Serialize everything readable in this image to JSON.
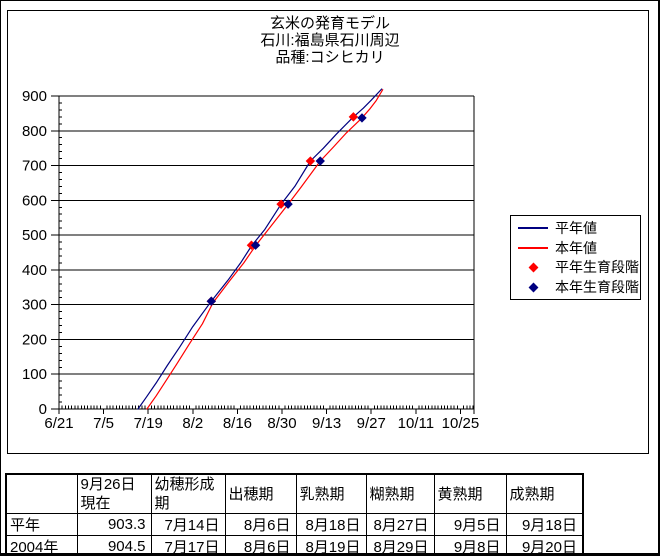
{
  "colors": {
    "heinen_line": "#000080",
    "honnen_line": "#ff0000",
    "heinen_marker": "#ff0000",
    "honnen_marker": "#000080",
    "grid": "#000000"
  },
  "chart": {
    "title_lines": [
      "玄米の発育モデル",
      "石川:福島県石川周辺",
      "品種:コシヒカリ"
    ],
    "legend_items": [
      {
        "label": "平年値",
        "type": "line",
        "color": "#000080"
      },
      {
        "label": "本年値",
        "type": "line",
        "color": "#ff0000"
      },
      {
        "label": "平年生育段階",
        "type": "diamond",
        "color": "#ff0000"
      },
      {
        "label": "本年生育段階",
        "type": "diamond",
        "color": "#000080"
      }
    ]
  },
  "chart_data": {
    "type": "line",
    "title": "玄米の発育モデル 石川:福島県石川周辺 品種:コシヒカリ",
    "xlabel": "",
    "ylabel": "",
    "x_axis": {
      "tick_labels": [
        "6/21",
        "7/5",
        "7/19",
        "8/2",
        "8/16",
        "8/30",
        "9/13",
        "9/27",
        "10/11",
        "10/25"
      ],
      "tick_days": [
        0,
        14,
        28,
        42,
        56,
        70,
        84,
        98,
        112,
        126
      ],
      "minor_unit_days": 1,
      "range_days": [
        0,
        130.3
      ]
    },
    "y_axis": {
      "min": 0,
      "max": 900,
      "major": 100,
      "minor": 20,
      "tick_labels": [
        "0",
        "100",
        "200",
        "300",
        "400",
        "500",
        "600",
        "700",
        "800",
        "900"
      ]
    },
    "grid": "horizontal-major",
    "legend_position": "right",
    "series": [
      {
        "name": "平年値",
        "color": "#000080",
        "points_day_value": [
          [
            24.8,
            0
          ],
          [
            27.5,
            35
          ],
          [
            30.5,
            75
          ],
          [
            34,
            125
          ],
          [
            38,
            180
          ],
          [
            42,
            237
          ],
          [
            47.8,
            310
          ],
          [
            53,
            370
          ],
          [
            57,
            420
          ],
          [
            60.5,
            470
          ],
          [
            64.5,
            515
          ],
          [
            69.7,
            589
          ],
          [
            74,
            640
          ],
          [
            78.9,
            713
          ],
          [
            83,
            750
          ],
          [
            87,
            790
          ],
          [
            92.4,
            840
          ],
          [
            95.5,
            865
          ],
          [
            98,
            888
          ],
          [
            101.3,
            920
          ]
        ]
      },
      {
        "name": "本年値",
        "color": "#ff0000",
        "points_day_value": [
          [
            27.6,
            0
          ],
          [
            30.5,
            38
          ],
          [
            33.5,
            80
          ],
          [
            37,
            130
          ],
          [
            41,
            188
          ],
          [
            45,
            245
          ],
          [
            48.3,
            305
          ],
          [
            53.5,
            368
          ],
          [
            58,
            420
          ],
          [
            61.8,
            471
          ],
          [
            66,
            520
          ],
          [
            71.9,
            589
          ],
          [
            76,
            638
          ],
          [
            82,
            713
          ],
          [
            86,
            752
          ],
          [
            90,
            792
          ],
          [
            95.1,
            837
          ],
          [
            97.5,
            862
          ],
          [
            99.5,
            886
          ],
          [
            101.6,
            918
          ]
        ]
      }
    ],
    "markers": [
      {
        "name": "平年生育段階",
        "color": "#ff0000",
        "points_day_value": [
          [
            47.8,
            310
          ],
          [
            60.4,
            471
          ],
          [
            69.7,
            589
          ],
          [
            78.9,
            713
          ],
          [
            92.4,
            840
          ]
        ]
      },
      {
        "name": "本年生育段階",
        "color": "#000080",
        "points_day_value": [
          [
            47.8,
            310
          ],
          [
            61.7,
            471
          ],
          [
            71.9,
            589
          ],
          [
            82.0,
            713
          ],
          [
            95.1,
            837
          ]
        ]
      }
    ]
  },
  "table": {
    "col_headers": [
      "",
      "9月26日現在",
      "幼穂形成期",
      "出穂期",
      "乳熟期",
      "糊熟期",
      "黄熟期",
      "成熟期"
    ],
    "rows": [
      {
        "label": "平年",
        "values": [
          "903.3",
          "7月14日",
          "8月6日",
          "8月18日",
          "8月27日",
          "9月5日",
          "9月18日"
        ]
      },
      {
        "label": "2004年",
        "values": [
          "904.5",
          "7月17日",
          "8月6日",
          "8月19日",
          "8月29日",
          "9月8日",
          "9月20日"
        ]
      }
    ]
  }
}
